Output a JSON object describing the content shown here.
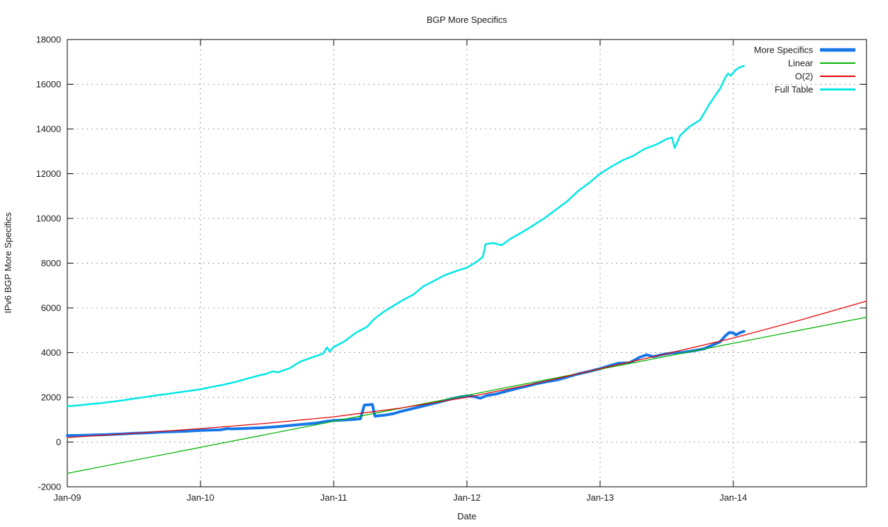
{
  "page": {
    "background": "#ffffff",
    "text_color": "#1a1a1a",
    "axis_color": "#000000",
    "grid_color": "#9b9b9b"
  },
  "chart_data": {
    "type": "line",
    "title": "BGP More Specifics",
    "xlabel": "Date",
    "ylabel": "IPv6 BGP More Specifics",
    "x_domain": [
      2009,
      2015
    ],
    "y_domain": [
      -2000,
      18000
    ],
    "grid": "on",
    "legend_position": "top-right-inside",
    "x_ticks": [
      {
        "value": 2009,
        "label": "Jan-09"
      },
      {
        "value": 2010,
        "label": "Jan-10"
      },
      {
        "value": 2011,
        "label": "Jan-11"
      },
      {
        "value": 2012,
        "label": "Jan-12"
      },
      {
        "value": 2013,
        "label": "Jan-13"
      },
      {
        "value": 2014,
        "label": "Jan-14"
      }
    ],
    "y_ticks": [
      {
        "value": -2000,
        "label": "-2000"
      },
      {
        "value": 0,
        "label": "0"
      },
      {
        "value": 2000,
        "label": "2000"
      },
      {
        "value": 4000,
        "label": "4000"
      },
      {
        "value": 6000,
        "label": "6000"
      },
      {
        "value": 8000,
        "label": "8000"
      },
      {
        "value": 10000,
        "label": "10000"
      },
      {
        "value": 12000,
        "label": "12000"
      },
      {
        "value": 14000,
        "label": "14000"
      },
      {
        "value": 16000,
        "label": "16000"
      },
      {
        "value": 18000,
        "label": "18000"
      }
    ],
    "series": [
      {
        "name": "More Specifics",
        "color": "#1777E8",
        "width": 4,
        "legend_sample_width": 5,
        "points": [
          [
            2009.0,
            290
          ],
          [
            2009.06,
            295
          ],
          [
            2009.12,
            300
          ],
          [
            2009.2,
            315
          ],
          [
            2009.28,
            330
          ],
          [
            2009.35,
            350
          ],
          [
            2009.42,
            365
          ],
          [
            2009.5,
            390
          ],
          [
            2009.58,
            405
          ],
          [
            2009.65,
            425
          ],
          [
            2009.72,
            450
          ],
          [
            2009.8,
            465
          ],
          [
            2009.88,
            480
          ],
          [
            2009.95,
            505
          ],
          [
            2010.0,
            520
          ],
          [
            2010.08,
            535
          ],
          [
            2010.15,
            545
          ],
          [
            2010.2,
            600
          ],
          [
            2010.24,
            590
          ],
          [
            2010.3,
            600
          ],
          [
            2010.38,
            620
          ],
          [
            2010.45,
            635
          ],
          [
            2010.5,
            655
          ],
          [
            2010.58,
            690
          ],
          [
            2010.65,
            730
          ],
          [
            2010.72,
            770
          ],
          [
            2010.8,
            810
          ],
          [
            2010.88,
            860
          ],
          [
            2010.95,
            930
          ],
          [
            2011.0,
            960
          ],
          [
            2011.08,
            990
          ],
          [
            2011.15,
            1010
          ],
          [
            2011.2,
            1040
          ],
          [
            2011.23,
            1650
          ],
          [
            2011.29,
            1680
          ],
          [
            2011.31,
            1160
          ],
          [
            2011.38,
            1200
          ],
          [
            2011.45,
            1270
          ],
          [
            2011.5,
            1360
          ],
          [
            2011.58,
            1480
          ],
          [
            2011.65,
            1580
          ],
          [
            2011.72,
            1680
          ],
          [
            2011.8,
            1800
          ],
          [
            2011.88,
            1930
          ],
          [
            2011.95,
            2020
          ],
          [
            2012.0,
            2060
          ],
          [
            2012.05,
            2040
          ],
          [
            2012.1,
            1960
          ],
          [
            2012.15,
            2080
          ],
          [
            2012.22,
            2150
          ],
          [
            2012.3,
            2280
          ],
          [
            2012.38,
            2400
          ],
          [
            2012.45,
            2500
          ],
          [
            2012.52,
            2600
          ],
          [
            2012.6,
            2700
          ],
          [
            2012.68,
            2780
          ],
          [
            2012.75,
            2900
          ],
          [
            2012.83,
            3040
          ],
          [
            2012.92,
            3160
          ],
          [
            2013.0,
            3280
          ],
          [
            2013.08,
            3430
          ],
          [
            2013.14,
            3530
          ],
          [
            2013.22,
            3540
          ],
          [
            2013.3,
            3800
          ],
          [
            2013.35,
            3900
          ],
          [
            2013.4,
            3820
          ],
          [
            2013.48,
            3930
          ],
          [
            2013.55,
            3990
          ],
          [
            2013.62,
            4010
          ],
          [
            2013.7,
            4080
          ],
          [
            2013.78,
            4170
          ],
          [
            2013.85,
            4350
          ],
          [
            2013.9,
            4480
          ],
          [
            2013.94,
            4750
          ],
          [
            2013.97,
            4900
          ],
          [
            2014.0,
            4880
          ],
          [
            2014.02,
            4790
          ],
          [
            2014.05,
            4890
          ],
          [
            2014.08,
            4950
          ]
        ]
      },
      {
        "name": "Linear",
        "color": "#00B400",
        "width": 1.3,
        "legend_sample_width": 2,
        "points": [
          [
            2009.0,
            -1400
          ],
          [
            2015.0,
            5580
          ]
        ]
      },
      {
        "name": "O(2)",
        "color": "#E60000",
        "width": 1.3,
        "legend_sample_width": 2,
        "points": [
          [
            2009.0,
            200
          ],
          [
            2009.5,
            390
          ],
          [
            2010.0,
            600
          ],
          [
            2010.5,
            840
          ],
          [
            2011.0,
            1130
          ],
          [
            2011.5,
            1520
          ],
          [
            2012.0,
            2000
          ],
          [
            2012.5,
            2600
          ],
          [
            2013.0,
            3280
          ],
          [
            2013.5,
            3950
          ],
          [
            2014.0,
            4650
          ],
          [
            2014.5,
            5450
          ],
          [
            2015.0,
            6300
          ]
        ]
      },
      {
        "name": "Full Table",
        "color": "#00E6E6",
        "width": 2.5,
        "legend_sample_width": 3,
        "points": [
          [
            2009.0,
            1600
          ],
          [
            2009.08,
            1640
          ],
          [
            2009.16,
            1690
          ],
          [
            2009.25,
            1740
          ],
          [
            2009.33,
            1800
          ],
          [
            2009.42,
            1870
          ],
          [
            2009.5,
            1940
          ],
          [
            2009.58,
            2010
          ],
          [
            2009.67,
            2090
          ],
          [
            2009.75,
            2150
          ],
          [
            2009.83,
            2220
          ],
          [
            2009.92,
            2290
          ],
          [
            2010.0,
            2360
          ],
          [
            2010.08,
            2460
          ],
          [
            2010.17,
            2560
          ],
          [
            2010.25,
            2670
          ],
          [
            2010.33,
            2800
          ],
          [
            2010.42,
            2950
          ],
          [
            2010.5,
            3060
          ],
          [
            2010.54,
            3160
          ],
          [
            2010.58,
            3120
          ],
          [
            2010.67,
            3300
          ],
          [
            2010.75,
            3600
          ],
          [
            2010.83,
            3770
          ],
          [
            2010.92,
            3950
          ],
          [
            2010.95,
            4230
          ],
          [
            2010.97,
            4050
          ],
          [
            2011.0,
            4250
          ],
          [
            2011.08,
            4500
          ],
          [
            2011.17,
            4900
          ],
          [
            2011.25,
            5150
          ],
          [
            2011.3,
            5480
          ],
          [
            2011.37,
            5800
          ],
          [
            2011.45,
            6100
          ],
          [
            2011.52,
            6350
          ],
          [
            2011.6,
            6600
          ],
          [
            2011.67,
            6950
          ],
          [
            2011.75,
            7200
          ],
          [
            2011.83,
            7450
          ],
          [
            2011.92,
            7650
          ],
          [
            2012.0,
            7800
          ],
          [
            2012.07,
            8050
          ],
          [
            2012.12,
            8280
          ],
          [
            2012.14,
            8850
          ],
          [
            2012.2,
            8900
          ],
          [
            2012.26,
            8800
          ],
          [
            2012.33,
            9100
          ],
          [
            2012.42,
            9400
          ],
          [
            2012.5,
            9700
          ],
          [
            2012.58,
            10000
          ],
          [
            2012.67,
            10400
          ],
          [
            2012.75,
            10750
          ],
          [
            2012.83,
            11200
          ],
          [
            2012.92,
            11600
          ],
          [
            2013.0,
            12000
          ],
          [
            2013.08,
            12300
          ],
          [
            2013.17,
            12600
          ],
          [
            2013.25,
            12800
          ],
          [
            2013.33,
            13100
          ],
          [
            2013.42,
            13300
          ],
          [
            2013.5,
            13550
          ],
          [
            2013.54,
            13620
          ],
          [
            2013.56,
            13150
          ],
          [
            2013.6,
            13700
          ],
          [
            2013.67,
            14100
          ],
          [
            2013.75,
            14400
          ],
          [
            2013.83,
            15200
          ],
          [
            2013.9,
            15800
          ],
          [
            2013.94,
            16300
          ],
          [
            2013.96,
            16480
          ],
          [
            2013.98,
            16380
          ],
          [
            2014.02,
            16650
          ],
          [
            2014.05,
            16760
          ],
          [
            2014.08,
            16820
          ]
        ]
      }
    ]
  }
}
